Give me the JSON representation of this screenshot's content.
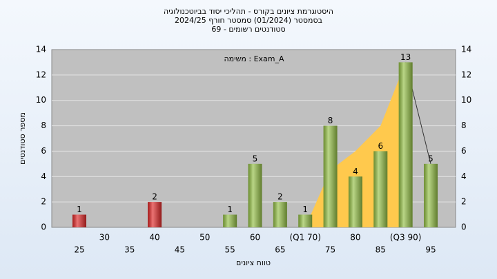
{
  "chart_data": {
    "type": "bar",
    "title": "היסטוגרמת ציונים בקורס - תהליכי יסוד בביוטכנולוגיה",
    "subtitle": [
      "בסמסטר  (01/2024)  סמסטר חורף 2024/25",
      "סטודנטים רשומים - 69"
    ],
    "annotation": "משימה : Exam_A",
    "x_label": "טווח ציונים",
    "y_label": "מספר סטודנטים",
    "categories": [
      "25",
      "30",
      "35",
      "40",
      "45",
      "50",
      "55",
      "60",
      "65",
      "(Q1 70)",
      "75",
      "80",
      "85",
      "(Q3 90)",
      "95"
    ],
    "series": [
      {
        "values": [
          1,
          null,
          null,
          2,
          null,
          null,
          1,
          5,
          2,
          1,
          8,
          4,
          6,
          13,
          5
        ],
        "colors": [
          "#e02828",
          null,
          null,
          "#e02828",
          null,
          null,
          "#94c046",
          "#94c046",
          "#94c046",
          "#94c046",
          "#94c046",
          "#94c046",
          "#94c046",
          "#94c046",
          "#94c046"
        ]
      },
      {
        "type": "area",
        "color": "#ffc94d",
        "values": [
          null,
          null,
          null,
          null,
          null,
          null,
          null,
          null,
          null,
          0,
          4.5,
          6,
          8,
          13,
          5
        ]
      }
    ],
    "ylim": [
      0,
      14
    ],
    "yticks": [
      0,
      2,
      4,
      6,
      8,
      10,
      12,
      14
    ],
    "grid": true
  }
}
